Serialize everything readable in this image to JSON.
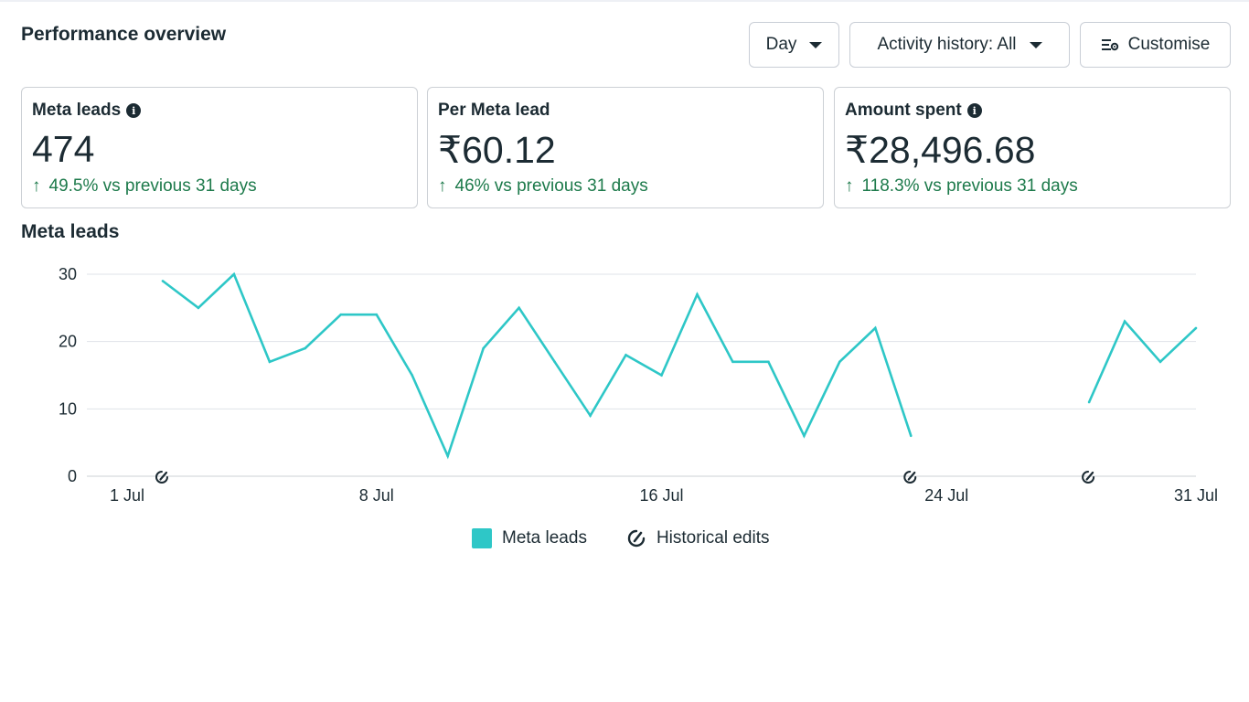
{
  "header": {
    "title": "Performance overview",
    "controls": {
      "day_label": "Day",
      "activity_label": "Activity history: All",
      "customise_label": "Customise"
    }
  },
  "metrics": [
    {
      "label": "Meta leads",
      "has_info": true,
      "value": "474",
      "delta": "49.5% vs previous 31 days"
    },
    {
      "label": "Per Meta lead",
      "has_info": false,
      "value": "₹60.12",
      "delta": "46% vs previous 31 days"
    },
    {
      "label": "Amount spent",
      "has_info": true,
      "value": "₹28,496.68",
      "delta": "118.3% vs previous 31 days"
    }
  ],
  "colors": {
    "series": "#2ec7c7",
    "positive_delta": "#1d7a4b",
    "text": "#1c2b33",
    "gridline": "#dfe3e8"
  },
  "chart_data": {
    "type": "line",
    "title": "Meta leads",
    "ylim": [
      0,
      30
    ],
    "yticks": [
      0,
      10,
      20,
      30
    ],
    "xlim": [
      1,
      31
    ],
    "xtick_labels": [
      {
        "day": 1,
        "label": "1 Jul"
      },
      {
        "day": 8,
        "label": "8 Jul"
      },
      {
        "day": 16,
        "label": "16 Jul"
      },
      {
        "day": 24,
        "label": "24 Jul"
      },
      {
        "day": 31,
        "label": "31 Jul"
      }
    ],
    "grid": true,
    "series": [
      {
        "name": "Meta leads",
        "points": [
          [
            2,
            29
          ],
          [
            3,
            25
          ],
          [
            4,
            30
          ],
          [
            5,
            17
          ],
          [
            6,
            19
          ],
          [
            7,
            24
          ],
          [
            8,
            24
          ],
          [
            9,
            15
          ],
          [
            10,
            3
          ],
          [
            11,
            19
          ],
          [
            12,
            25
          ],
          [
            13,
            17
          ],
          [
            14,
            9
          ],
          [
            15,
            18
          ],
          [
            16,
            15
          ],
          [
            17,
            27
          ],
          [
            18,
            17
          ],
          [
            19,
            17
          ],
          [
            20,
            6
          ],
          [
            21,
            17
          ],
          [
            22,
            22
          ],
          [
            23,
            6
          ],
          [
            null,
            null
          ],
          [
            28,
            11
          ],
          [
            29,
            23
          ],
          [
            30,
            17
          ],
          [
            31,
            22
          ]
        ]
      }
    ],
    "historical_edits": [
      2,
      23,
      28
    ],
    "legend": {
      "position": "bottom-center",
      "series_label": "Meta leads",
      "edits_label": "Historical edits"
    }
  }
}
